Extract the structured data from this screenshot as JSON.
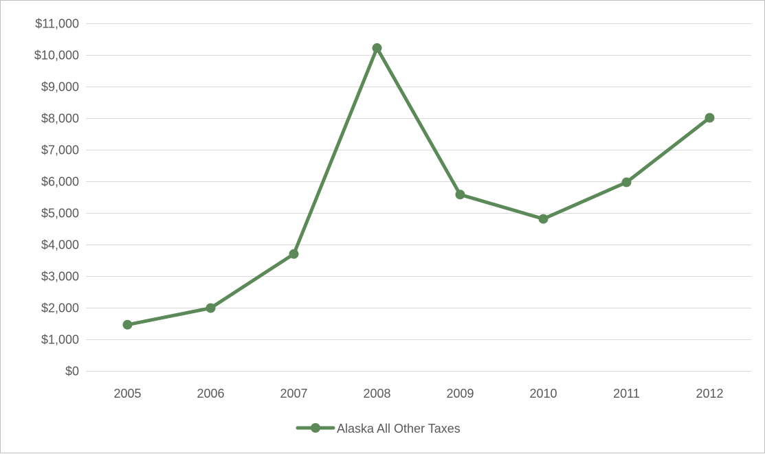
{
  "chart_data": {
    "type": "line",
    "title": "",
    "xlabel": "",
    "ylabel": "",
    "x": [
      "2005",
      "2006",
      "2007",
      "2008",
      "2009",
      "2010",
      "2011",
      "2012"
    ],
    "series": [
      {
        "name": "Alaska All Other Taxes",
        "values": [
          1460,
          1990,
          3700,
          10220,
          5580,
          4810,
          5970,
          8010
        ],
        "color": "#5b8a58"
      }
    ],
    "ylim": [
      0,
      11000
    ],
    "yticks": [
      0,
      1000,
      2000,
      3000,
      4000,
      5000,
      6000,
      7000,
      8000,
      9000,
      10000,
      11000
    ],
    "ytick_labels": [
      "$0",
      "$1,000",
      "$2,000",
      "$3,000",
      "$4,000",
      "$5,000",
      "$6,000",
      "$7,000",
      "$8,000",
      "$9,000",
      "$10,000",
      "$11,000"
    ],
    "grid": true,
    "legend_position": "bottom"
  }
}
